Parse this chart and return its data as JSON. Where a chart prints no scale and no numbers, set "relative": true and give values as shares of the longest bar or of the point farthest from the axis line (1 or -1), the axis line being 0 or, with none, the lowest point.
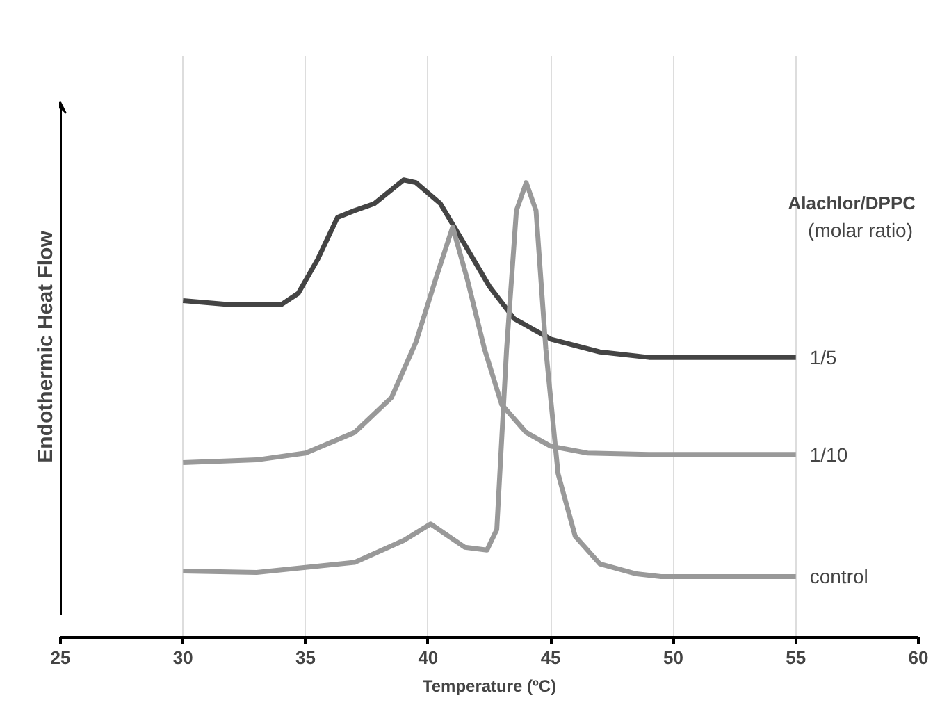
{
  "chart_data": {
    "type": "line",
    "relative": true,
    "xlabel": "Temperature (ºC)",
    "ylabel": "Endothermic Heat Flow",
    "legend_title": "Alachlor/DPPC",
    "annotations": [
      "(molar ratio)"
    ],
    "xlim": [
      25,
      60
    ],
    "xticks": [
      25,
      30,
      35,
      40,
      45,
      50,
      55,
      60
    ],
    "grid": "x",
    "marker": "none",
    "line_style": "solid",
    "series": [
      {
        "name": "1/5",
        "color": "#444444",
        "x": [
          30,
          32,
          34,
          34.7,
          35.5,
          36.3,
          37,
          37.8,
          39,
          39.5,
          40.5,
          41.5,
          42.5,
          43.5,
          45,
          47,
          49,
          55
        ],
        "values": [
          0.736,
          0.727,
          0.727,
          0.752,
          0.827,
          0.918,
          0.933,
          0.948,
          1.0,
          0.994,
          0.948,
          0.858,
          0.767,
          0.697,
          0.652,
          0.624,
          0.612,
          0.612
        ]
      },
      {
        "name": "1/10",
        "color": "#999999",
        "x": [
          30,
          33,
          35,
          37,
          38.5,
          39.5,
          40.3,
          41,
          41.6,
          42.3,
          43,
          44,
          45,
          46.5,
          49,
          55
        ],
        "values": [
          0.382,
          0.388,
          0.403,
          0.448,
          0.524,
          0.645,
          0.782,
          0.897,
          0.782,
          0.63,
          0.509,
          0.448,
          0.418,
          0.403,
          0.4,
          0.4
        ]
      },
      {
        "name": "control",
        "color": "#999999",
        "x": [
          30,
          33,
          37,
          39,
          40.1,
          41.5,
          42.4,
          42.8,
          43.2,
          43.6,
          44,
          44.4,
          44.8,
          45.3,
          46,
          47,
          48.5,
          49.5,
          55
        ],
        "values": [
          0.145,
          0.142,
          0.164,
          0.212,
          0.248,
          0.197,
          0.191,
          0.236,
          0.63,
          0.933,
          0.994,
          0.933,
          0.63,
          0.358,
          0.221,
          0.161,
          0.139,
          0.133,
          0.133
        ]
      }
    ]
  }
}
